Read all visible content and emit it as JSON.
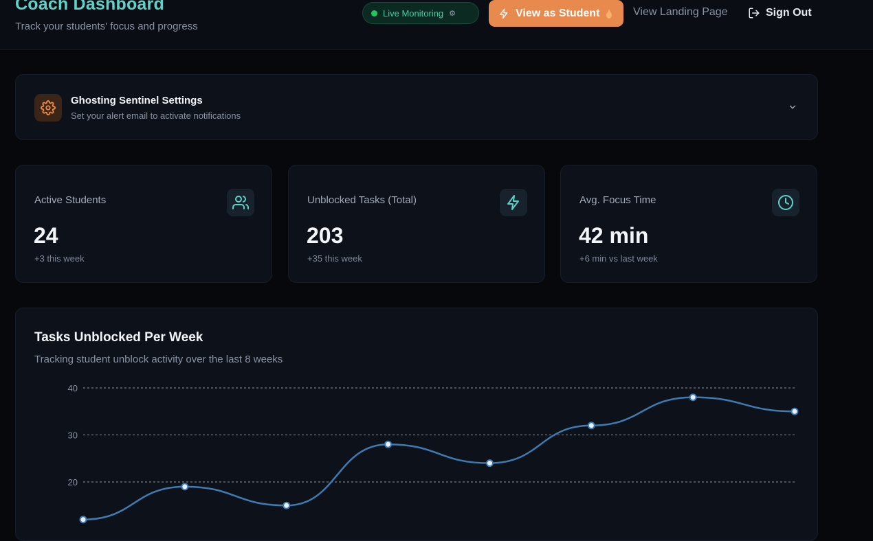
{
  "header": {
    "title": "Coach Dashboard",
    "subtitle": "Track your students' focus and progress",
    "live_badge": "Live Monitoring",
    "view_student": "View as Student",
    "landing": "View Landing Page",
    "sign_out": "Sign Out"
  },
  "settings": {
    "title": "Ghosting Sentinel Settings",
    "subtitle": "Set your alert email to activate notifications",
    "icon": "gear-icon"
  },
  "stats": [
    {
      "label": "Active Students",
      "value": "24",
      "delta": "+3 this week",
      "icon": "users-icon"
    },
    {
      "label": "Unblocked Tasks (Total)",
      "value": "203",
      "delta": "+35 this week",
      "icon": "lightning-icon"
    },
    {
      "label": "Avg. Focus Time",
      "value": "42 min",
      "delta": "+6 min vs last week",
      "icon": "clock-icon"
    }
  ],
  "colors": {
    "accent_teal": "#5fd1c7",
    "accent_orange": "#e8894e",
    "live_green": "#22c55e",
    "line": "#3f7ab0"
  },
  "chart_data": {
    "type": "line",
    "title": "Tasks Unblocked Per Week",
    "subtitle": "Tracking student unblock activity over the last 8 weeks",
    "y_ticks": [
      20,
      30,
      40
    ],
    "ylim_visible": [
      12,
      41
    ],
    "grid": true,
    "series": [
      {
        "values": [
          12,
          19,
          15,
          28,
          24,
          32,
          38,
          35
        ]
      }
    ]
  }
}
